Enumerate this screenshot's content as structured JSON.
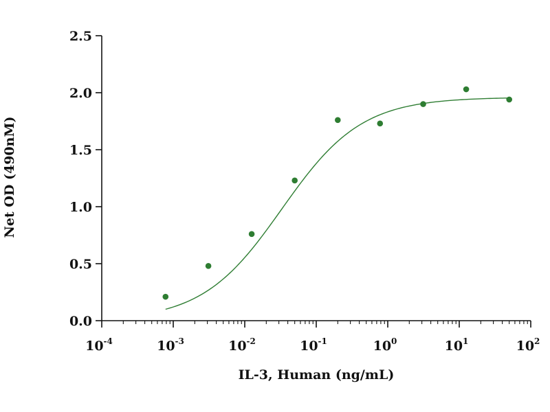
{
  "chart_data": {
    "type": "scatter",
    "xlabel": "IL-3, Human (ng/mL)",
    "ylabel": "Net OD (490nM)",
    "xscale": "log",
    "xlim": [
      0.0001,
      100
    ],
    "ylim": [
      0,
      2.5
    ],
    "x_ticks": [
      {
        "base": "10",
        "exp": "-4",
        "value": 0.0001
      },
      {
        "base": "10",
        "exp": "-3",
        "value": 0.001
      },
      {
        "base": "10",
        "exp": "-2",
        "value": 0.01
      },
      {
        "base": "10",
        "exp": "-1",
        "value": 0.1
      },
      {
        "base": "10",
        "exp": "0",
        "value": 1
      },
      {
        "base": "10",
        "exp": "1",
        "value": 10
      },
      {
        "base": "10",
        "exp": "2",
        "value": 100
      }
    ],
    "y_ticks": [
      {
        "label": "0.0",
        "value": 0
      },
      {
        "label": "0.5",
        "value": 0.5
      },
      {
        "label": "1.0",
        "value": 1
      },
      {
        "label": "1.5",
        "value": 1.5
      },
      {
        "label": "2.0",
        "value": 2
      },
      {
        "label": "2.5",
        "value": 2.5
      }
    ],
    "grid": false,
    "legend": "none",
    "series": [
      {
        "points": [
          {
            "x": 0.00078,
            "y": 0.21
          },
          {
            "x": 0.0031,
            "y": 0.48
          },
          {
            "x": 0.0125,
            "y": 0.76
          },
          {
            "x": 0.05,
            "y": 1.23
          },
          {
            "x": 0.2,
            "y": 1.76
          },
          {
            "x": 0.78,
            "y": 1.73
          },
          {
            "x": 3.13,
            "y": 1.9
          },
          {
            "x": 12.5,
            "y": 2.03
          },
          {
            "x": 50,
            "y": 1.94
          }
        ]
      }
    ],
    "fit_curve": {
      "model": "4PL",
      "bottom": 0.0,
      "top": 1.96,
      "ec50": 0.033,
      "hill": 0.78,
      "x_range": [
        0.00078,
        50
      ]
    },
    "colors": {
      "points": "#2e7d32",
      "curve": "#2e7d32",
      "axis": "#111111"
    }
  }
}
